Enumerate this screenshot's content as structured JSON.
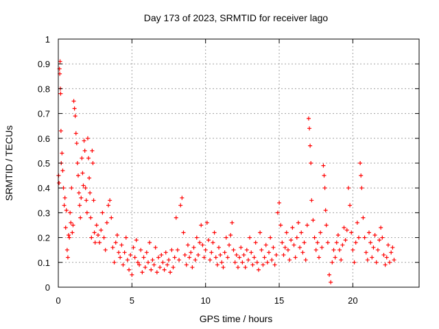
{
  "chart_data": {
    "type": "scatter",
    "title": "Day 173 of 2023, SRMTID for receiver lago",
    "xlabel": "GPS time / hours",
    "ylabel": "SRMTID / TECUs",
    "xlim": [
      0,
      24.5
    ],
    "ylim": [
      0,
      1
    ],
    "xticks": [
      "0",
      "5",
      "10",
      "15",
      "20"
    ],
    "xtick_values": [
      0,
      5,
      10,
      15,
      20
    ],
    "yticks": [
      "0",
      "0.1",
      "0.2",
      "0.3",
      "0.4",
      "0.5",
      "0.6",
      "0.7",
      "0.8",
      "0.9",
      "1"
    ],
    "ytick_values": [
      0,
      0.1,
      0.2,
      0.3,
      0.4,
      0.5,
      0.6,
      0.7,
      0.8,
      0.9,
      1.0
    ],
    "grid": true,
    "marker": "+",
    "color": "#ff0000",
    "series": [
      {
        "name": "SRMTID",
        "points": [
          [
            0.02,
            0.45
          ],
          [
            0.05,
            0.42
          ],
          [
            0.08,
            0.88
          ],
          [
            0.1,
            0.86
          ],
          [
            0.12,
            0.91
          ],
          [
            0.14,
            0.8
          ],
          [
            0.16,
            0.78
          ],
          [
            0.18,
            0.63
          ],
          [
            0.2,
            0.5
          ],
          [
            0.25,
            0.54
          ],
          [
            0.3,
            0.47
          ],
          [
            0.35,
            0.4
          ],
          [
            0.4,
            0.33
          ],
          [
            0.45,
            0.36
          ],
          [
            0.5,
            0.24
          ],
          [
            0.55,
            0.31
          ],
          [
            0.6,
            0.15
          ],
          [
            0.65,
            0.12
          ],
          [
            0.7,
            0.21
          ],
          [
            0.75,
            0.2
          ],
          [
            0.8,
            0.3
          ],
          [
            0.85,
            0.26
          ],
          [
            0.9,
            0.4
          ],
          [
            0.95,
            0.22
          ],
          [
            1.0,
            0.25
          ],
          [
            1.05,
            0.75
          ],
          [
            1.1,
            0.72
          ],
          [
            1.15,
            0.69
          ],
          [
            1.2,
            0.62
          ],
          [
            1.25,
            0.58
          ],
          [
            1.3,
            0.5
          ],
          [
            1.35,
            0.45
          ],
          [
            1.4,
            0.38
          ],
          [
            1.45,
            0.33
          ],
          [
            1.5,
            0.28
          ],
          [
            1.55,
            0.36
          ],
          [
            1.6,
            0.52
          ],
          [
            1.65,
            0.46
          ],
          [
            1.7,
            0.41
          ],
          [
            1.75,
            0.59
          ],
          [
            1.8,
            0.55
          ],
          [
            1.85,
            0.4
          ],
          [
            1.9,
            0.35
          ],
          [
            1.95,
            0.3
          ],
          [
            2.0,
            0.6
          ],
          [
            2.05,
            0.52
          ],
          [
            2.1,
            0.44
          ],
          [
            2.15,
            0.38
          ],
          [
            2.2,
            0.28
          ],
          [
            2.25,
            0.2
          ],
          [
            2.3,
            0.55
          ],
          [
            2.35,
            0.5
          ],
          [
            2.4,
            0.35
          ],
          [
            2.45,
            0.22
          ],
          [
            2.5,
            0.18
          ],
          [
            2.6,
            0.25
          ],
          [
            2.7,
            0.21
          ],
          [
            2.8,
            0.18
          ],
          [
            2.9,
            0.23
          ],
          [
            3.0,
            0.3
          ],
          [
            3.1,
            0.2
          ],
          [
            3.2,
            0.15
          ],
          [
            3.3,
            0.26
          ],
          [
            3.4,
            0.33
          ],
          [
            3.5,
            0.35
          ],
          [
            3.6,
            0.28
          ],
          [
            3.7,
            0.16
          ],
          [
            3.8,
            0.1
          ],
          [
            3.9,
            0.18
          ],
          [
            4.0,
            0.21
          ],
          [
            4.1,
            0.14
          ],
          [
            4.2,
            0.12
          ],
          [
            4.3,
            0.17
          ],
          [
            4.4,
            0.09
          ],
          [
            4.5,
            0.14
          ],
          [
            4.6,
            0.2
          ],
          [
            4.7,
            0.11
          ],
          [
            4.8,
            0.07
          ],
          [
            4.9,
            0.13
          ],
          [
            5.0,
            0.05
          ],
          [
            5.1,
            0.16
          ],
          [
            5.2,
            0.12
          ],
          [
            5.3,
            0.19
          ],
          [
            5.4,
            0.1
          ],
          [
            5.5,
            0.09
          ],
          [
            5.6,
            0.15
          ],
          [
            5.7,
            0.06
          ],
          [
            5.8,
            0.12
          ],
          [
            5.9,
            0.08
          ],
          [
            6.0,
            0.14
          ],
          [
            6.1,
            0.1
          ],
          [
            6.2,
            0.18
          ],
          [
            6.3,
            0.07
          ],
          [
            6.4,
            0.11
          ],
          [
            6.5,
            0.09
          ],
          [
            6.6,
            0.16
          ],
          [
            6.7,
            0.06
          ],
          [
            6.8,
            0.12
          ],
          [
            6.9,
            0.08
          ],
          [
            7.0,
            0.13
          ],
          [
            7.1,
            0.1
          ],
          [
            7.2,
            0.07
          ],
          [
            7.3,
            0.14
          ],
          [
            7.4,
            0.09
          ],
          [
            7.5,
            0.11
          ],
          [
            7.6,
            0.06
          ],
          [
            7.7,
            0.15
          ],
          [
            7.8,
            0.08
          ],
          [
            7.9,
            0.12
          ],
          [
            8.0,
            0.28
          ],
          [
            8.1,
            0.15
          ],
          [
            8.2,
            0.11
          ],
          [
            8.3,
            0.33
          ],
          [
            8.4,
            0.36
          ],
          [
            8.5,
            0.22
          ],
          [
            8.6,
            0.13
          ],
          [
            8.7,
            0.09
          ],
          [
            8.8,
            0.17
          ],
          [
            8.9,
            0.12
          ],
          [
            9.0,
            0.14
          ],
          [
            9.1,
            0.08
          ],
          [
            9.2,
            0.16
          ],
          [
            9.3,
            0.11
          ],
          [
            9.4,
            0.2
          ],
          [
            9.5,
            0.13
          ],
          [
            9.6,
            0.18
          ],
          [
            9.7,
            0.25
          ],
          [
            9.8,
            0.17
          ],
          [
            9.9,
            0.12
          ],
          [
            10.0,
            0.15
          ],
          [
            10.1,
            0.26
          ],
          [
            10.2,
            0.19
          ],
          [
            10.3,
            0.11
          ],
          [
            10.4,
            0.14
          ],
          [
            10.5,
            0.18
          ],
          [
            10.6,
            0.22
          ],
          [
            10.7,
            0.12
          ],
          [
            10.8,
            0.09
          ],
          [
            10.9,
            0.16
          ],
          [
            11.0,
            0.13
          ],
          [
            11.1,
            0.1
          ],
          [
            11.2,
            0.08
          ],
          [
            11.3,
            0.14
          ],
          [
            11.4,
            0.2
          ],
          [
            11.5,
            0.12
          ],
          [
            11.6,
            0.17
          ],
          [
            11.7,
            0.21
          ],
          [
            11.8,
            0.26
          ],
          [
            11.9,
            0.15
          ],
          [
            12.0,
            0.1
          ],
          [
            12.1,
            0.13
          ],
          [
            12.2,
            0.08
          ],
          [
            12.3,
            0.12
          ],
          [
            12.4,
            0.16
          ],
          [
            12.5,
            0.1
          ],
          [
            12.6,
            0.13
          ],
          [
            12.7,
            0.08
          ],
          [
            12.8,
            0.15
          ],
          [
            12.9,
            0.11
          ],
          [
            13.0,
            0.2
          ],
          [
            13.1,
            0.14
          ],
          [
            13.2,
            0.09
          ],
          [
            13.3,
            0.12
          ],
          [
            13.4,
            0.18
          ],
          [
            13.5,
            0.1
          ],
          [
            13.6,
            0.07
          ],
          [
            13.7,
            0.22
          ],
          [
            13.8,
            0.15
          ],
          [
            13.9,
            0.09
          ],
          [
            14.0,
            0.12
          ],
          [
            14.1,
            0.17
          ],
          [
            14.2,
            0.1
          ],
          [
            14.3,
            0.14
          ],
          [
            14.4,
            0.2
          ],
          [
            14.5,
            0.11
          ],
          [
            14.6,
            0.16
          ],
          [
            14.7,
            0.09
          ],
          [
            14.8,
            0.13
          ],
          [
            14.9,
            0.3
          ],
          [
            15.0,
            0.34
          ],
          [
            15.1,
            0.25
          ],
          [
            15.2,
            0.18
          ],
          [
            15.3,
            0.13
          ],
          [
            15.4,
            0.16
          ],
          [
            15.5,
            0.22
          ],
          [
            15.6,
            0.15
          ],
          [
            15.7,
            0.11
          ],
          [
            15.8,
            0.19
          ],
          [
            15.9,
            0.24
          ],
          [
            16.0,
            0.17
          ],
          [
            16.1,
            0.12
          ],
          [
            16.2,
            0.2
          ],
          [
            16.3,
            0.26
          ],
          [
            16.4,
            0.16
          ],
          [
            16.5,
            0.22
          ],
          [
            16.6,
            0.14
          ],
          [
            16.7,
            0.18
          ],
          [
            16.8,
            0.11
          ],
          [
            16.9,
            0.25
          ],
          [
            17.0,
            0.68
          ],
          [
            17.05,
            0.64
          ],
          [
            17.1,
            0.57
          ],
          [
            17.15,
            0.5
          ],
          [
            17.2,
            0.35
          ],
          [
            17.3,
            0.27
          ],
          [
            17.4,
            0.2
          ],
          [
            17.5,
            0.15
          ],
          [
            17.6,
            0.18
          ],
          [
            17.7,
            0.12
          ],
          [
            17.8,
            0.22
          ],
          [
            17.9,
            0.16
          ],
          [
            18.0,
            0.49
          ],
          [
            18.05,
            0.45
          ],
          [
            18.1,
            0.4
          ],
          [
            18.15,
            0.31
          ],
          [
            18.2,
            0.25
          ],
          [
            18.3,
            0.18
          ],
          [
            18.4,
            0.05
          ],
          [
            18.5,
            0.02
          ],
          [
            18.6,
            0.1
          ],
          [
            18.7,
            0.15
          ],
          [
            18.8,
            0.12
          ],
          [
            18.9,
            0.18
          ],
          [
            19.0,
            0.21
          ],
          [
            19.1,
            0.15
          ],
          [
            19.2,
            0.11
          ],
          [
            19.3,
            0.17
          ],
          [
            19.4,
            0.24
          ],
          [
            19.5,
            0.19
          ],
          [
            19.6,
            0.23
          ],
          [
            19.7,
            0.4
          ],
          [
            19.8,
            0.33
          ],
          [
            19.9,
            0.22
          ],
          [
            20.0,
            0.15
          ],
          [
            20.1,
            0.1
          ],
          [
            20.2,
            0.18
          ],
          [
            20.3,
            0.26
          ],
          [
            20.4,
            0.2
          ],
          [
            20.5,
            0.5
          ],
          [
            20.55,
            0.45
          ],
          [
            20.6,
            0.4
          ],
          [
            20.7,
            0.28
          ],
          [
            20.8,
            0.2
          ],
          [
            20.9,
            0.14
          ],
          [
            21.0,
            0.11
          ],
          [
            21.1,
            0.22
          ],
          [
            21.2,
            0.18
          ],
          [
            21.3,
            0.12
          ],
          [
            21.4,
            0.16
          ],
          [
            21.5,
            0.21
          ],
          [
            21.6,
            0.1
          ],
          [
            21.7,
            0.15
          ],
          [
            21.8,
            0.19
          ],
          [
            21.9,
            0.24
          ],
          [
            22.0,
            0.2
          ],
          [
            22.1,
            0.13
          ],
          [
            22.2,
            0.09
          ],
          [
            22.3,
            0.12
          ],
          [
            22.4,
            0.17
          ],
          [
            22.5,
            0.1
          ],
          [
            22.6,
            0.14
          ],
          [
            22.7,
            0.16
          ],
          [
            22.8,
            0.11
          ]
        ]
      }
    ]
  }
}
